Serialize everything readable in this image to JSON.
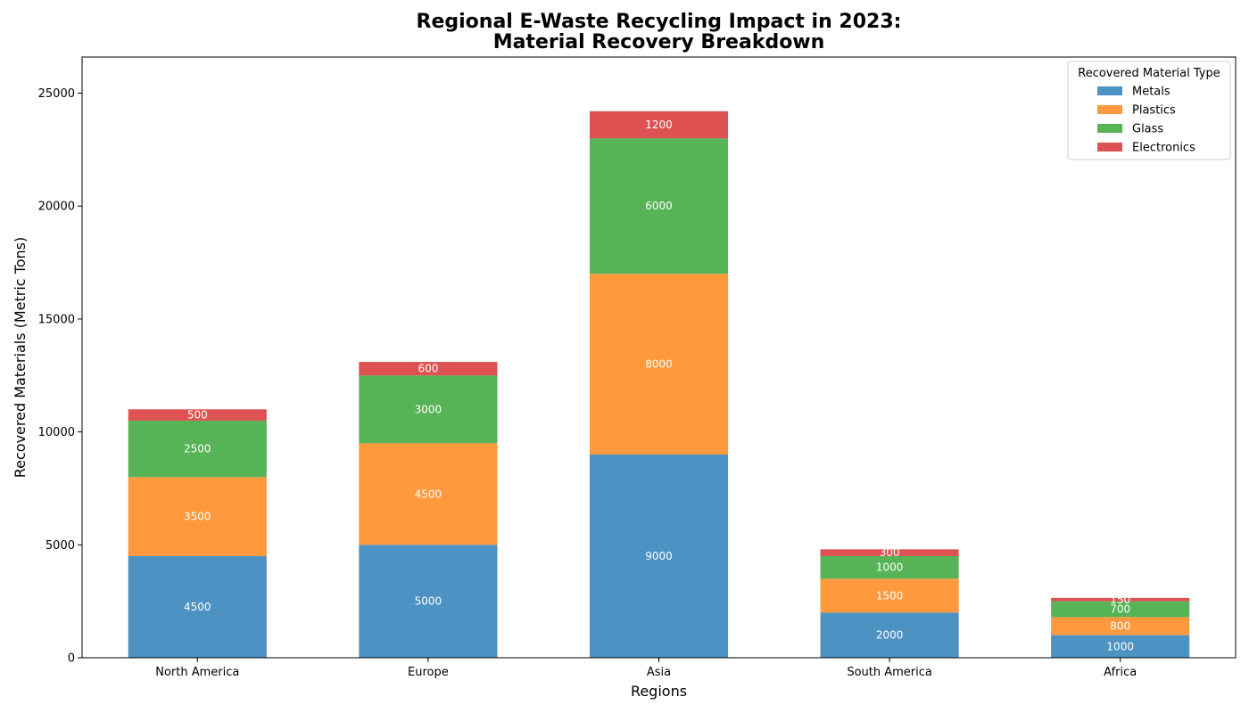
{
  "chart_data": {
    "type": "bar",
    "stacked": true,
    "title": "Regional E-Waste Recycling Impact in 2023:\nMaterial Recovery Breakdown",
    "xlabel": "Regions",
    "ylabel": "Recovered Materials (Metric Tons)",
    "categories": [
      "North America",
      "Europe",
      "Asia",
      "South America",
      "Africa"
    ],
    "series": [
      {
        "name": "Metals",
        "color": "#4c92c3",
        "values": [
          4500,
          5000,
          9000,
          2000,
          1000
        ]
      },
      {
        "name": "Plastics",
        "color": "#ff993e",
        "values": [
          3500,
          4500,
          8000,
          1500,
          800
        ]
      },
      {
        "name": "Glass",
        "color": "#56b356",
        "values": [
          2500,
          3000,
          6000,
          1000,
          700
        ]
      },
      {
        "name": "Electronics",
        "color": "#de5253",
        "values": [
          500,
          600,
          1200,
          300,
          150
        ]
      }
    ],
    "ylim": [
      0,
      26600
    ],
    "yticks": [
      0,
      5000,
      10000,
      15000,
      20000,
      25000
    ],
    "legend": {
      "title": "Recovered Material Type",
      "position": "top-right"
    },
    "grid": false
  }
}
